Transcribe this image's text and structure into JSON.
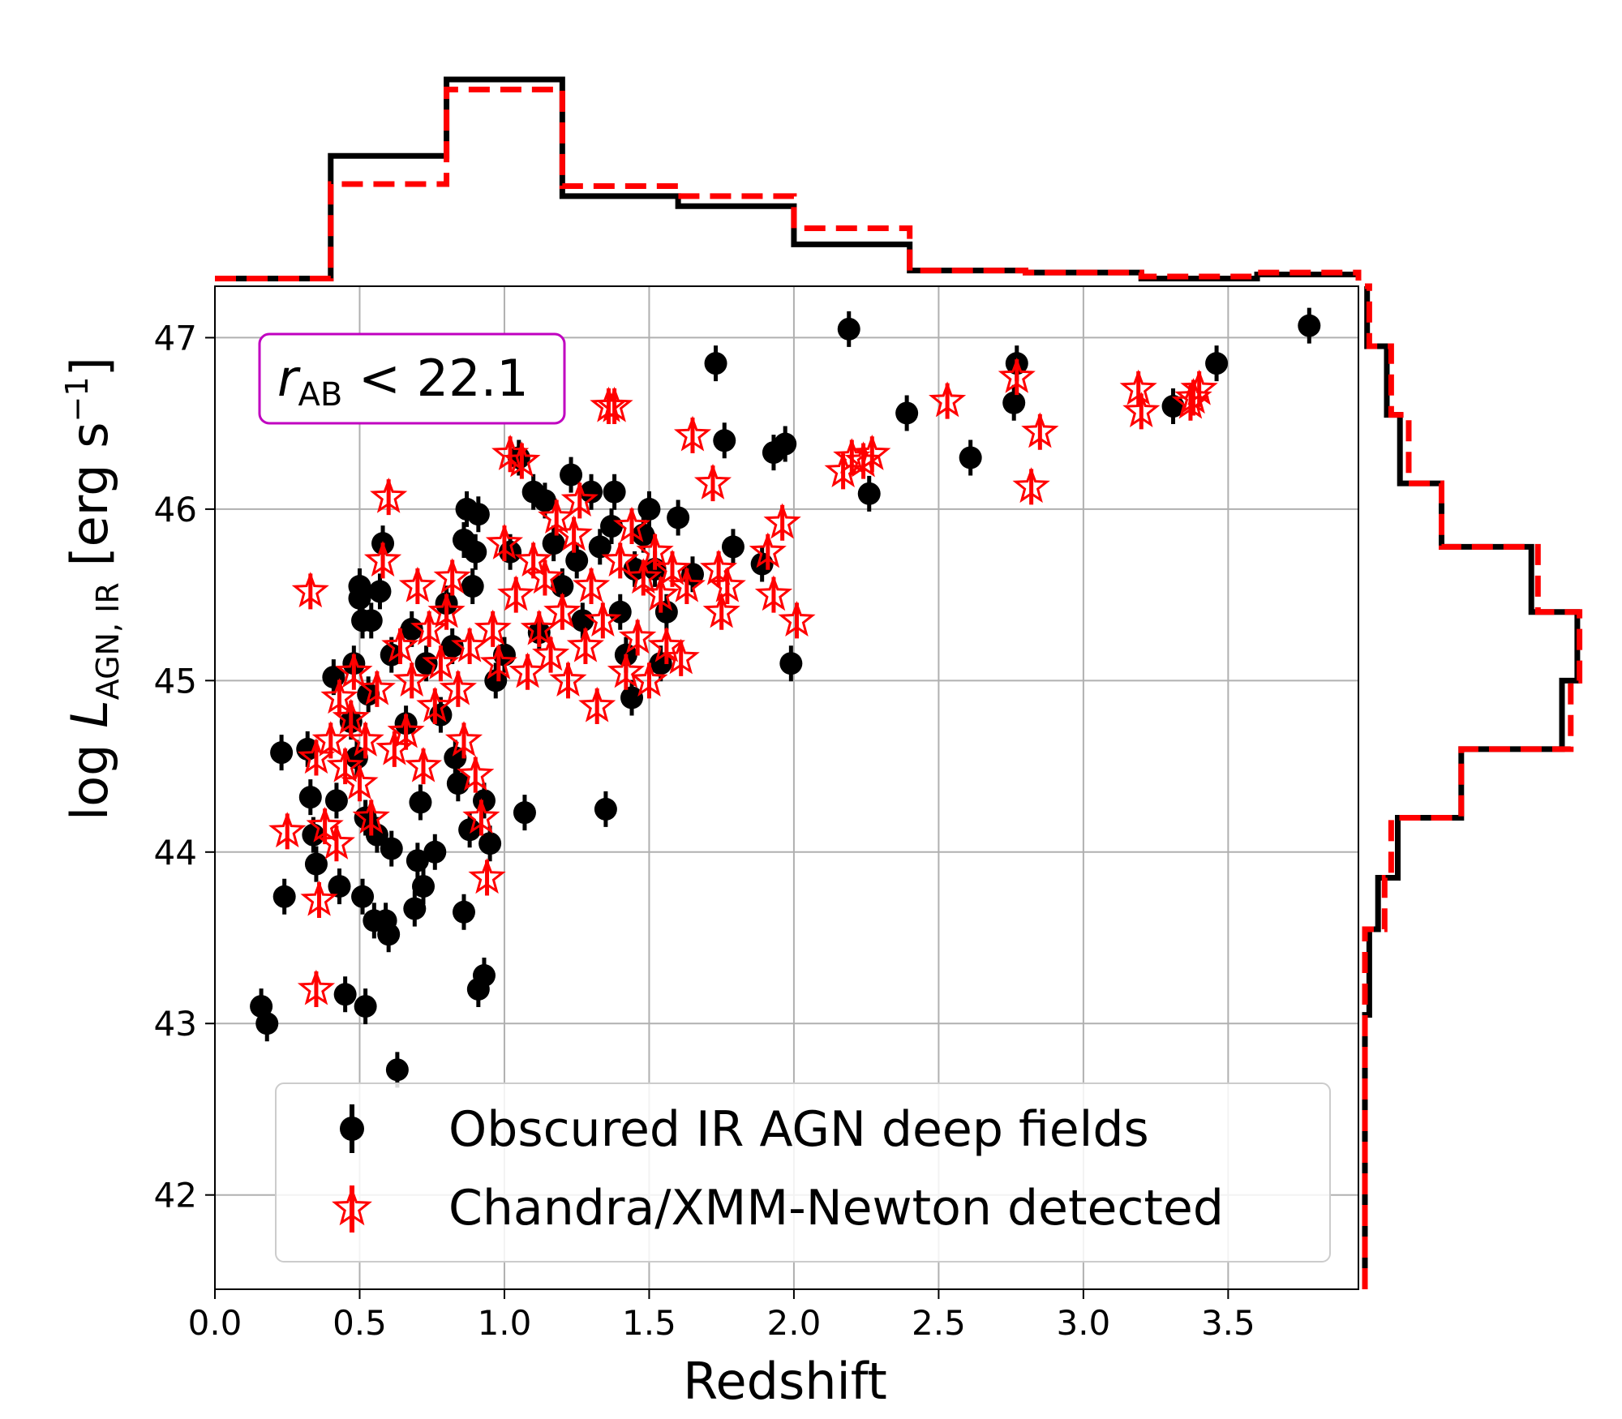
{
  "chart_data": {
    "type": "scatter",
    "xlabel": "Redshift",
    "ylabel": {
      "prefix": "log ",
      "symbol": "L",
      "subscript": "AGN, IR",
      "unit": " [erg s",
      "exponent": "−1",
      "close": "]"
    },
    "xlim": [
      0.0,
      3.95
    ],
    "ylim": [
      41.45,
      47.3
    ],
    "x_ticks": [
      "0.0",
      "0.5",
      "1.0",
      "1.5",
      "2.0",
      "2.5",
      "3.0",
      "3.5"
    ],
    "y_ticks": [
      "42",
      "43",
      "44",
      "45",
      "46",
      "47"
    ],
    "grid": true,
    "legend_position": "lower-right",
    "annotation": {
      "symbol": "r",
      "subscript": "AB",
      "relation": " < 22.1",
      "border_color": "#c000c0"
    },
    "colors": {
      "obscured": "#000000",
      "xray": "#ff0000",
      "grid": "#b0b0b0"
    },
    "series": [
      {
        "name": "Obscured IR AGN deep fields",
        "marker": "circle",
        "color": "#000000",
        "points": [
          [
            0.16,
            43.1
          ],
          [
            0.18,
            43.0
          ],
          [
            0.23,
            44.58
          ],
          [
            0.24,
            43.74
          ],
          [
            0.32,
            44.6
          ],
          [
            0.33,
            44.32
          ],
          [
            0.34,
            44.1
          ],
          [
            0.35,
            43.93
          ],
          [
            0.41,
            45.02
          ],
          [
            0.42,
            44.3
          ],
          [
            0.43,
            43.8
          ],
          [
            0.45,
            43.17
          ],
          [
            0.47,
            44.76
          ],
          [
            0.48,
            45.1
          ],
          [
            0.49,
            44.55
          ],
          [
            0.5,
            45.48
          ],
          [
            0.5,
            45.55
          ],
          [
            0.51,
            45.35
          ],
          [
            0.51,
            43.74
          ],
          [
            0.52,
            43.1
          ],
          [
            0.52,
            44.2
          ],
          [
            0.53,
            44.92
          ],
          [
            0.54,
            45.35
          ],
          [
            0.55,
            43.6
          ],
          [
            0.56,
            44.1
          ],
          [
            0.57,
            45.52
          ],
          [
            0.58,
            45.8
          ],
          [
            0.59,
            43.6
          ],
          [
            0.6,
            43.52
          ],
          [
            0.61,
            45.15
          ],
          [
            0.61,
            44.02
          ],
          [
            0.63,
            42.73
          ],
          [
            0.66,
            44.75
          ],
          [
            0.68,
            45.3
          ],
          [
            0.69,
            43.67
          ],
          [
            0.7,
            43.95
          ],
          [
            0.71,
            44.29
          ],
          [
            0.72,
            43.8
          ],
          [
            0.73,
            45.1
          ],
          [
            0.76,
            44.0
          ],
          [
            0.78,
            44.8
          ],
          [
            0.8,
            45.45
          ],
          [
            0.82,
            45.2
          ],
          [
            0.83,
            44.55
          ],
          [
            0.84,
            44.4
          ],
          [
            0.86,
            43.65
          ],
          [
            0.86,
            45.82
          ],
          [
            0.87,
            46.0
          ],
          [
            0.88,
            44.13
          ],
          [
            0.89,
            45.55
          ],
          [
            0.9,
            45.75
          ],
          [
            0.91,
            45.97
          ],
          [
            0.91,
            43.2
          ],
          [
            0.93,
            43.28
          ],
          [
            0.93,
            44.3
          ],
          [
            0.95,
            44.05
          ],
          [
            0.97,
            45.0
          ],
          [
            1.0,
            45.15
          ],
          [
            1.02,
            45.75
          ],
          [
            1.05,
            46.3
          ],
          [
            1.07,
            44.23
          ],
          [
            1.1,
            46.1
          ],
          [
            1.12,
            45.28
          ],
          [
            1.14,
            46.05
          ],
          [
            1.17,
            45.8
          ],
          [
            1.2,
            45.55
          ],
          [
            1.23,
            46.2
          ],
          [
            1.25,
            45.7
          ],
          [
            1.27,
            45.35
          ],
          [
            1.3,
            46.1
          ],
          [
            1.33,
            45.78
          ],
          [
            1.35,
            44.25
          ],
          [
            1.37,
            45.9
          ],
          [
            1.38,
            46.1
          ],
          [
            1.4,
            45.4
          ],
          [
            1.42,
            45.15
          ],
          [
            1.44,
            44.9
          ],
          [
            1.45,
            45.65
          ],
          [
            1.48,
            45.85
          ],
          [
            1.5,
            46.0
          ],
          [
            1.52,
            45.65
          ],
          [
            1.54,
            45.1
          ],
          [
            1.56,
            45.4
          ],
          [
            1.6,
            45.95
          ],
          [
            1.65,
            45.62
          ],
          [
            1.73,
            46.85
          ],
          [
            1.76,
            46.4
          ],
          [
            1.79,
            45.78
          ],
          [
            1.89,
            45.68
          ],
          [
            1.93,
            46.33
          ],
          [
            1.97,
            46.38
          ],
          [
            1.99,
            45.1
          ],
          [
            2.19,
            47.05
          ],
          [
            2.26,
            46.09
          ],
          [
            2.39,
            46.56
          ],
          [
            2.61,
            46.3
          ],
          [
            2.76,
            46.62
          ],
          [
            2.77,
            46.85
          ],
          [
            3.31,
            46.6
          ],
          [
            3.46,
            46.85
          ],
          [
            3.78,
            47.07
          ]
        ]
      },
      {
        "name": "Chandra/XMM-Newton detected",
        "marker": "star",
        "color": "#ff0000",
        "points": [
          [
            0.25,
            44.12
          ],
          [
            0.33,
            45.52
          ],
          [
            0.35,
            44.55
          ],
          [
            0.35,
            43.2
          ],
          [
            0.36,
            43.72
          ],
          [
            0.38,
            44.15
          ],
          [
            0.4,
            44.65
          ],
          [
            0.42,
            44.05
          ],
          [
            0.43,
            44.9
          ],
          [
            0.45,
            44.5
          ],
          [
            0.47,
            44.78
          ],
          [
            0.48,
            45.05
          ],
          [
            0.5,
            44.4
          ],
          [
            0.52,
            44.65
          ],
          [
            0.54,
            44.2
          ],
          [
            0.56,
            44.95
          ],
          [
            0.58,
            45.7
          ],
          [
            0.6,
            46.07
          ],
          [
            0.62,
            44.6
          ],
          [
            0.64,
            45.2
          ],
          [
            0.66,
            44.7
          ],
          [
            0.68,
            45.0
          ],
          [
            0.7,
            45.55
          ],
          [
            0.72,
            44.5
          ],
          [
            0.74,
            45.3
          ],
          [
            0.76,
            44.85
          ],
          [
            0.78,
            45.1
          ],
          [
            0.8,
            45.4
          ],
          [
            0.82,
            45.6
          ],
          [
            0.84,
            44.95
          ],
          [
            0.86,
            44.65
          ],
          [
            0.88,
            45.2
          ],
          [
            0.9,
            44.45
          ],
          [
            0.92,
            44.2
          ],
          [
            0.94,
            43.85
          ],
          [
            0.96,
            45.3
          ],
          [
            0.98,
            45.1
          ],
          [
            1.0,
            45.8
          ],
          [
            1.02,
            46.32
          ],
          [
            1.04,
            45.5
          ],
          [
            1.06,
            46.28
          ],
          [
            1.08,
            45.05
          ],
          [
            1.1,
            45.7
          ],
          [
            1.12,
            45.3
          ],
          [
            1.14,
            45.6
          ],
          [
            1.16,
            45.15
          ],
          [
            1.18,
            45.95
          ],
          [
            1.2,
            45.4
          ],
          [
            1.22,
            45.0
          ],
          [
            1.24,
            45.85
          ],
          [
            1.26,
            46.05
          ],
          [
            1.28,
            45.2
          ],
          [
            1.3,
            45.55
          ],
          [
            1.32,
            44.85
          ],
          [
            1.34,
            45.35
          ],
          [
            1.36,
            46.6
          ],
          [
            1.38,
            46.6
          ],
          [
            1.4,
            45.7
          ],
          [
            1.42,
            45.05
          ],
          [
            1.44,
            45.9
          ],
          [
            1.46,
            45.25
          ],
          [
            1.48,
            45.6
          ],
          [
            1.5,
            45.0
          ],
          [
            1.52,
            45.75
          ],
          [
            1.54,
            45.5
          ],
          [
            1.56,
            45.2
          ],
          [
            1.58,
            45.65
          ],
          [
            1.61,
            45.13
          ],
          [
            1.63,
            45.55
          ],
          [
            1.65,
            46.43
          ],
          [
            1.72,
            46.15
          ],
          [
            1.74,
            45.65
          ],
          [
            1.75,
            45.4
          ],
          [
            1.77,
            45.55
          ],
          [
            1.91,
            45.75
          ],
          [
            1.93,
            45.5
          ],
          [
            1.96,
            45.92
          ],
          [
            2.01,
            45.35
          ],
          [
            2.17,
            46.22
          ],
          [
            2.2,
            46.3
          ],
          [
            2.24,
            46.28
          ],
          [
            2.27,
            46.32
          ],
          [
            2.53,
            46.63
          ],
          [
            2.77,
            46.77
          ],
          [
            2.82,
            46.13
          ],
          [
            2.85,
            46.45
          ],
          [
            3.19,
            46.7
          ],
          [
            3.2,
            46.57
          ],
          [
            3.37,
            46.62
          ],
          [
            3.38,
            46.65
          ],
          [
            3.4,
            46.7
          ]
        ]
      }
    ],
    "histogram_redshift": {
      "bin_edges": [
        0.0,
        0.4,
        0.8,
        1.2,
        1.6,
        2.0,
        2.4,
        2.8,
        3.2,
        3.6,
        3.95
      ],
      "obscured_ir_agn": [
        0.01,
        0.62,
        1.0,
        0.42,
        0.37,
        0.18,
        0.05,
        0.04,
        0.01,
        0.03
      ],
      "xray_detected": [
        0.01,
        0.48,
        0.95,
        0.47,
        0.42,
        0.26,
        0.05,
        0.04,
        0.02,
        0.04
      ]
    },
    "histogram_luminosity": {
      "bin_edges": [
        41.45,
        43.05,
        43.55,
        43.85,
        44.2,
        44.6,
        45.0,
        45.4,
        45.78,
        46.15,
        46.55,
        46.95,
        47.3
      ],
      "obscured_ir_agn": [
        0.0,
        0.02,
        0.06,
        0.15,
        0.44,
        0.9,
        0.97,
        0.76,
        0.35,
        0.16,
        0.1,
        0.01
      ],
      "xray_detected": [
        0.0,
        0.0,
        0.09,
        0.12,
        0.44,
        0.94,
        0.98,
        0.79,
        0.35,
        0.2,
        0.12,
        0.02
      ]
    }
  },
  "legend": {
    "items": [
      {
        "label": "Obscured IR AGN deep fields"
      },
      {
        "label": "Chandra/XMM-Newton detected"
      }
    ]
  }
}
